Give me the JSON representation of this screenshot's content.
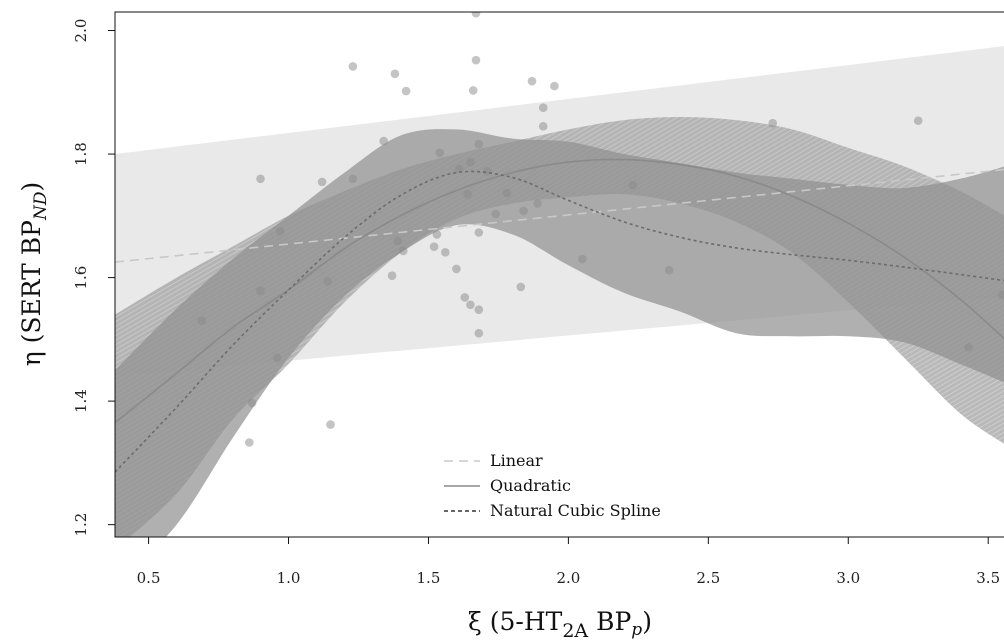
{
  "chart_data": {
    "type": "scatter",
    "xlabel_main": "ξ (5-HT",
    "xlabel_sub": "2A",
    "xlabel_tail": " BP",
    "xlabel_tail_sub": "p",
    "xlabel_end": ")",
    "ylabel_main": "η (SERT BP",
    "ylabel_sub": "ND",
    "ylabel_end": ")",
    "xlim": [
      0.38,
      3.56
    ],
    "ylim": [
      1.18,
      2.03
    ],
    "x_ticks": [
      0.5,
      1.0,
      1.5,
      2.0,
      2.5,
      3.0,
      3.5
    ],
    "x_tick_labels": [
      "0.5",
      "1.0",
      "1.5",
      "2.0",
      "2.5",
      "3.0",
      "3.5"
    ],
    "y_ticks": [
      1.2,
      1.4,
      1.6,
      1.8,
      2.0
    ],
    "y_tick_labels": [
      "1.2",
      "1.4",
      "1.6",
      "1.8",
      "2.0"
    ],
    "grid": false,
    "legend_position": "bottom-center",
    "points": [
      [
        0.69,
        1.53
      ],
      [
        0.86,
        1.333
      ],
      [
        0.87,
        1.397
      ],
      [
        0.9,
        1.76
      ],
      [
        0.9,
        1.579
      ],
      [
        0.96,
        1.47
      ],
      [
        0.97,
        1.675
      ],
      [
        1.12,
        1.755
      ],
      [
        1.14,
        1.594
      ],
      [
        1.15,
        1.362
      ],
      [
        1.23,
        1.942
      ],
      [
        1.23,
        1.76
      ],
      [
        1.34,
        1.821
      ],
      [
        1.37,
        1.603
      ],
      [
        1.38,
        1.93
      ],
      [
        1.39,
        1.659
      ],
      [
        1.41,
        1.643
      ],
      [
        1.42,
        1.902
      ],
      [
        1.52,
        1.65
      ],
      [
        1.53,
        1.67
      ],
      [
        1.54,
        1.802
      ],
      [
        1.56,
        1.641
      ],
      [
        1.6,
        1.614
      ],
      [
        1.61,
        1.776
      ],
      [
        1.63,
        1.568
      ],
      [
        1.64,
        1.735
      ],
      [
        1.65,
        1.556
      ],
      [
        1.65,
        1.787
      ],
      [
        1.66,
        1.903
      ],
      [
        1.67,
        2.028
      ],
      [
        1.67,
        1.952
      ],
      [
        1.68,
        1.816
      ],
      [
        1.68,
        1.673
      ],
      [
        1.68,
        1.548
      ],
      [
        1.68,
        1.51
      ],
      [
        1.71,
        1.772
      ],
      [
        1.74,
        1.703
      ],
      [
        1.78,
        1.737
      ],
      [
        1.83,
        1.585
      ],
      [
        1.84,
        1.708
      ],
      [
        1.87,
        1.918
      ],
      [
        1.89,
        1.72
      ],
      [
        1.91,
        1.875
      ],
      [
        1.91,
        1.845
      ],
      [
        1.95,
        1.91
      ],
      [
        2.05,
        1.63
      ],
      [
        2.23,
        1.75
      ],
      [
        2.36,
        1.612
      ],
      [
        2.73,
        1.85
      ],
      [
        3.25,
        1.854
      ],
      [
        3.43,
        1.487
      ],
      [
        3.55,
        1.572
      ]
    ],
    "series": [
      {
        "name": "Linear",
        "style": "dashed",
        "color": "#c8c8c8",
        "band_color": "#e4e4e4",
        "x": [
          0.38,
          3.56
        ],
        "y": [
          1.625,
          1.775
        ],
        "lower": [
          1.44,
          1.57
        ],
        "upper": [
          1.8,
          1.975
        ]
      },
      {
        "name": "Quadratic",
        "style": "solid",
        "color": "#8a8a8a",
        "band_color": "#a9a9a9",
        "x": [
          0.38,
          0.6,
          0.8,
          1.0,
          1.2,
          1.4,
          1.6,
          1.8,
          2.0,
          2.2,
          2.4,
          2.6,
          2.8,
          3.0,
          3.2,
          3.4,
          3.56
        ],
        "y": [
          1.365,
          1.445,
          1.519,
          1.58,
          1.647,
          1.7,
          1.741,
          1.77,
          1.787,
          1.791,
          1.783,
          1.764,
          1.732,
          1.688,
          1.633,
          1.565,
          1.5
        ],
        "lower": [
          1.16,
          1.25,
          1.37,
          1.46,
          1.56,
          1.64,
          1.695,
          1.72,
          1.73,
          1.735,
          1.72,
          1.69,
          1.64,
          1.56,
          1.47,
          1.38,
          1.33
        ],
        "upper": [
          1.54,
          1.6,
          1.65,
          1.7,
          1.74,
          1.775,
          1.8,
          1.82,
          1.84,
          1.855,
          1.86,
          1.855,
          1.84,
          1.81,
          1.78,
          1.74,
          1.7
        ]
      },
      {
        "name": "Natural Cubic Spline",
        "style": "dotted",
        "color": "#6c6c6c",
        "band_color": "#8f8f8f",
        "x": [
          0.38,
          0.6,
          0.8,
          1.0,
          1.2,
          1.4,
          1.6,
          1.8,
          2.0,
          2.2,
          2.4,
          2.6,
          2.8,
          3.0,
          3.2,
          3.4,
          3.56
        ],
        "y": [
          1.285,
          1.39,
          1.49,
          1.58,
          1.665,
          1.733,
          1.77,
          1.762,
          1.725,
          1.69,
          1.665,
          1.648,
          1.637,
          1.628,
          1.617,
          1.605,
          1.595
        ],
        "lower": [
          1.1,
          1.2,
          1.34,
          1.47,
          1.57,
          1.64,
          1.685,
          1.67,
          1.62,
          1.575,
          1.545,
          1.51,
          1.505,
          1.505,
          1.495,
          1.46,
          1.43
        ],
        "upper": [
          1.45,
          1.55,
          1.63,
          1.7,
          1.77,
          1.83,
          1.84,
          1.825,
          1.82,
          1.8,
          1.785,
          1.77,
          1.76,
          1.75,
          1.745,
          1.76,
          1.78
        ]
      }
    ]
  }
}
